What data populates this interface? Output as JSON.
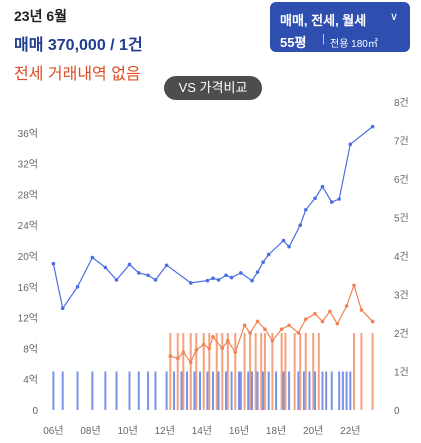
{
  "header": {
    "date": "23년 6월",
    "price": "매매 370,000 / 1건",
    "no_jeonse": "전세 거래내역 없음"
  },
  "filter": {
    "type_label": "매매, 전세, 월세",
    "size_label": "55평",
    "area_label": "전용 180㎡"
  },
  "vs_button": "VS 가격비교",
  "colors": {
    "sale": "#4a6fe0",
    "jeonse": "#ef8354",
    "accent": "#2f4fb0"
  },
  "chart_data": {
    "type": "line",
    "x_ticks": [
      "06년",
      "08년",
      "10년",
      "12년",
      "14년",
      "16년",
      "18년",
      "20년",
      "22년"
    ],
    "x_tick_values": [
      2006,
      2008,
      2010,
      2012,
      2014,
      2016,
      2018,
      2020,
      2022
    ],
    "xlim": [
      2005.6,
      2023.6
    ],
    "y_ticks": [
      "0",
      "4억",
      "8억",
      "12억",
      "16억",
      "20억",
      "24억",
      "28억",
      "32억",
      "36억"
    ],
    "y_tick_values": [
      0,
      4,
      8,
      12,
      16,
      20,
      24,
      28,
      32,
      36
    ],
    "ylim": [
      0,
      40
    ],
    "y2_ticks": [
      "0",
      "1건",
      "2건",
      "3건",
      "4건",
      "5건",
      "6건",
      "7건",
      "8건"
    ],
    "y2_tick_values": [
      0,
      1,
      2,
      3,
      4,
      5,
      6,
      7,
      8
    ],
    "y2lim": [
      0,
      8
    ],
    "series": [
      {
        "key": "sale",
        "x": [
          2006,
          2006.5,
          2007.3,
          2008.1,
          2008.8,
          2009.4,
          2010.1,
          2010.6,
          2011.1,
          2011.5,
          2012.1,
          2013.4,
          2014.3,
          2014.6,
          2014.9,
          2015.3,
          2015.6,
          2016.1,
          2016.7,
          2017.0,
          2017.3,
          2017.6,
          2018.4,
          2018.7,
          2019.3,
          2019.6,
          2020.1,
          2020.5,
          2021.0,
          2021.4,
          2022.0,
          2023.2
        ],
        "values": [
          19.0,
          13.2,
          16.0,
          19.8,
          18.5,
          16.9,
          18.9,
          17.8,
          17.5,
          16.9,
          18.8,
          16.5,
          16.8,
          17.1,
          16.9,
          17.5,
          17.2,
          17.8,
          16.8,
          17.9,
          19.2,
          20.2,
          22.0,
          21.2,
          24.0,
          26.0,
          27.5,
          29.0,
          27.0,
          27.4,
          34.5,
          36.8
        ]
      },
      {
        "key": "jeonse",
        "x": [
          2012.3,
          2012.7,
          2013.0,
          2013.4,
          2013.7,
          2014.1,
          2014.4,
          2014.6,
          2015.1,
          2015.4,
          2015.8,
          2016.3,
          2016.6,
          2017.0,
          2017.4,
          2017.8,
          2018.3,
          2018.7,
          2019.2,
          2019.6,
          2020.1,
          2020.5,
          2020.9,
          2021.3,
          2021.8,
          2022.2,
          2022.6,
          2023.2
        ],
        "values": [
          7.0,
          6.7,
          7.5,
          6.2,
          7.8,
          8.5,
          8.0,
          9.5,
          8.0,
          9.0,
          7.5,
          11.0,
          10.0,
          11.5,
          10.5,
          9.0,
          10.5,
          11.0,
          10.0,
          11.8,
          12.5,
          11.5,
          12.8,
          11.2,
          13.5,
          16.2,
          13.0,
          11.5
        ]
      }
    ],
    "volume_bars": {
      "x": [
        2006,
        2006.5,
        2007.3,
        2008.1,
        2008.8,
        2009.4,
        2010.1,
        2010.6,
        2011.1,
        2011.5,
        2012.1,
        2012.3,
        2012.5,
        2012.7,
        2012.9,
        2013.0,
        2013.2,
        2013.4,
        2013.6,
        2013.7,
        2013.9,
        2014.1,
        2014.3,
        2014.4,
        2014.6,
        2014.8,
        2014.9,
        2015.1,
        2015.3,
        2015.4,
        2015.6,
        2015.8,
        2016.0,
        2016.1,
        2016.3,
        2016.5,
        2016.6,
        2016.7,
        2016.9,
        2017.0,
        2017.2,
        2017.3,
        2017.4,
        2017.6,
        2017.8,
        2018.0,
        2018.3,
        2018.4,
        2018.5,
        2018.7,
        2019.0,
        2019.2,
        2019.3,
        2019.5,
        2019.6,
        2019.8,
        2020.0,
        2020.1,
        2020.3,
        2020.5,
        2020.7,
        2021.0,
        2021.4,
        2021.6,
        2021.8,
        2022.0,
        2022.2,
        2022.6,
        2023.2
      ],
      "counts": [
        1,
        1,
        1,
        1,
        1,
        1,
        1,
        1,
        1,
        1,
        1,
        2,
        1,
        2,
        1,
        2,
        1,
        2,
        1,
        2,
        1,
        2,
        1,
        2,
        1,
        2,
        1,
        2,
        1,
        2,
        1,
        2,
        1,
        1,
        2,
        1,
        2,
        1,
        2,
        1,
        2,
        1,
        2,
        1,
        2,
        1,
        2,
        1,
        2,
        1,
        2,
        1,
        2,
        1,
        2,
        1,
        2,
        1,
        2,
        1,
        1,
        1,
        1,
        1,
        1,
        1,
        2,
        2,
        2
      ],
      "types": [
        "sale",
        "sale",
        "sale",
        "sale",
        "sale",
        "sale",
        "sale",
        "sale",
        "sale",
        "sale",
        "sale",
        "jeonse",
        "sale",
        "jeonse",
        "sale",
        "jeonse",
        "sale",
        "jeonse",
        "sale",
        "jeonse",
        "sale",
        "jeonse",
        "sale",
        "jeonse",
        "sale",
        "jeonse",
        "sale",
        "jeonse",
        "sale",
        "jeonse",
        "sale",
        "jeonse",
        "sale",
        "sale",
        "jeonse",
        "sale",
        "jeonse",
        "sale",
        "jeonse",
        "sale",
        "jeonse",
        "sale",
        "jeonse",
        "sale",
        "jeonse",
        "sale",
        "jeonse",
        "sale",
        "jeonse",
        "sale",
        "jeonse",
        "sale",
        "jeonse",
        "sale",
        "jeonse",
        "sale",
        "jeonse",
        "sale",
        "jeonse",
        "sale",
        "sale",
        "sale",
        "sale",
        "sale",
        "sale",
        "sale",
        "jeonse",
        "jeonse",
        "jeonse"
      ]
    }
  }
}
